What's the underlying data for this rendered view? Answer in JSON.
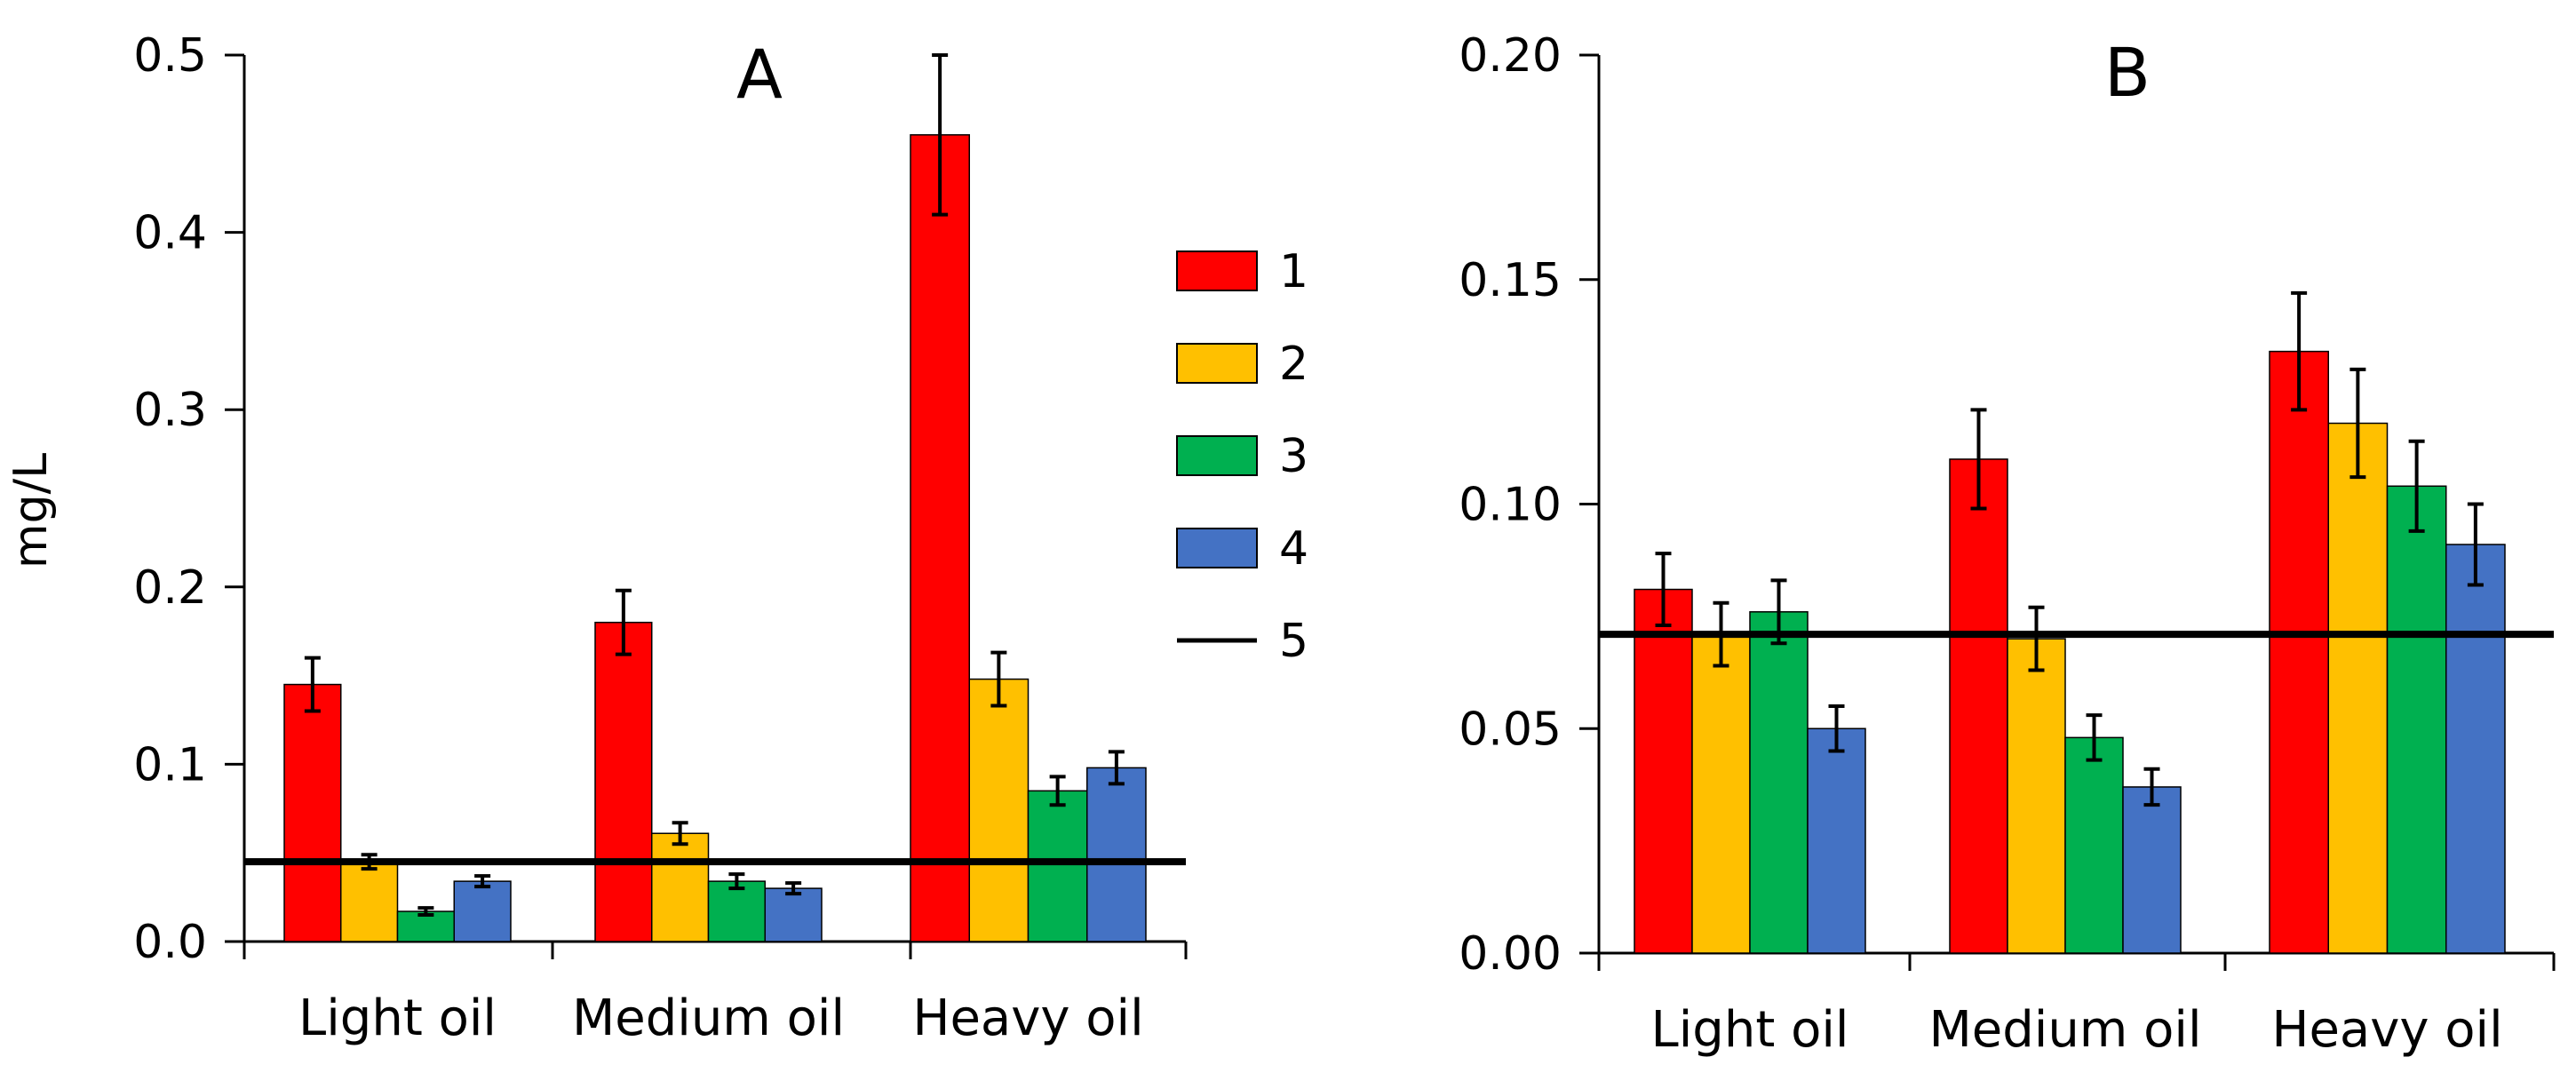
{
  "chart_data": [
    {
      "type": "bar",
      "title": "A",
      "ylabel": "mg/L",
      "ylim": [
        0,
        0.5
      ],
      "yticks": [
        "0.0",
        "0.1",
        "0.2",
        "0.3",
        "0.4",
        "0.5"
      ],
      "categories": [
        "Light oil",
        "Medium oil",
        "Heavy oil"
      ],
      "series": [
        {
          "name": "1",
          "color": "#ff0000",
          "values": [
            0.145,
            0.18,
            0.455
          ],
          "errors": [
            0.015,
            0.018,
            0.045
          ]
        },
        {
          "name": "2",
          "color": "#ffc000",
          "values": [
            0.045,
            0.061,
            0.148
          ],
          "errors": [
            0.004,
            0.006,
            0.015
          ]
        },
        {
          "name": "3",
          "color": "#00b050",
          "values": [
            0.017,
            0.034,
            0.085
          ],
          "errors": [
            0.002,
            0.004,
            0.008
          ]
        },
        {
          "name": "4",
          "color": "#4472c4",
          "values": [
            0.034,
            0.03,
            0.098
          ],
          "errors": [
            0.003,
            0.003,
            0.009
          ]
        }
      ],
      "reference_line": {
        "name": "5",
        "value": 0.045
      },
      "legend": [
        "1",
        "2",
        "3",
        "4",
        "5"
      ]
    },
    {
      "type": "bar",
      "title": "B",
      "ylabel": "",
      "ylim": [
        0,
        0.2
      ],
      "yticks": [
        "0.00",
        "0.05",
        "0.10",
        "0.15",
        "0.20"
      ],
      "categories": [
        "Light oil",
        "Medium oil",
        "Heavy oil"
      ],
      "series": [
        {
          "name": "1",
          "color": "#ff0000",
          "values": [
            0.081,
            0.11,
            0.134
          ],
          "errors": [
            0.008,
            0.011,
            0.013
          ]
        },
        {
          "name": "2",
          "color": "#ffc000",
          "values": [
            0.071,
            0.07,
            0.118
          ],
          "errors": [
            0.007,
            0.007,
            0.012
          ]
        },
        {
          "name": "3",
          "color": "#00b050",
          "values": [
            0.076,
            0.048,
            0.104
          ],
          "errors": [
            0.007,
            0.005,
            0.01
          ]
        },
        {
          "name": "4",
          "color": "#4472c4",
          "values": [
            0.05,
            0.037,
            0.091
          ],
          "errors": [
            0.005,
            0.004,
            0.009
          ]
        }
      ],
      "reference_line": {
        "name": "5",
        "value": 0.071
      }
    }
  ]
}
